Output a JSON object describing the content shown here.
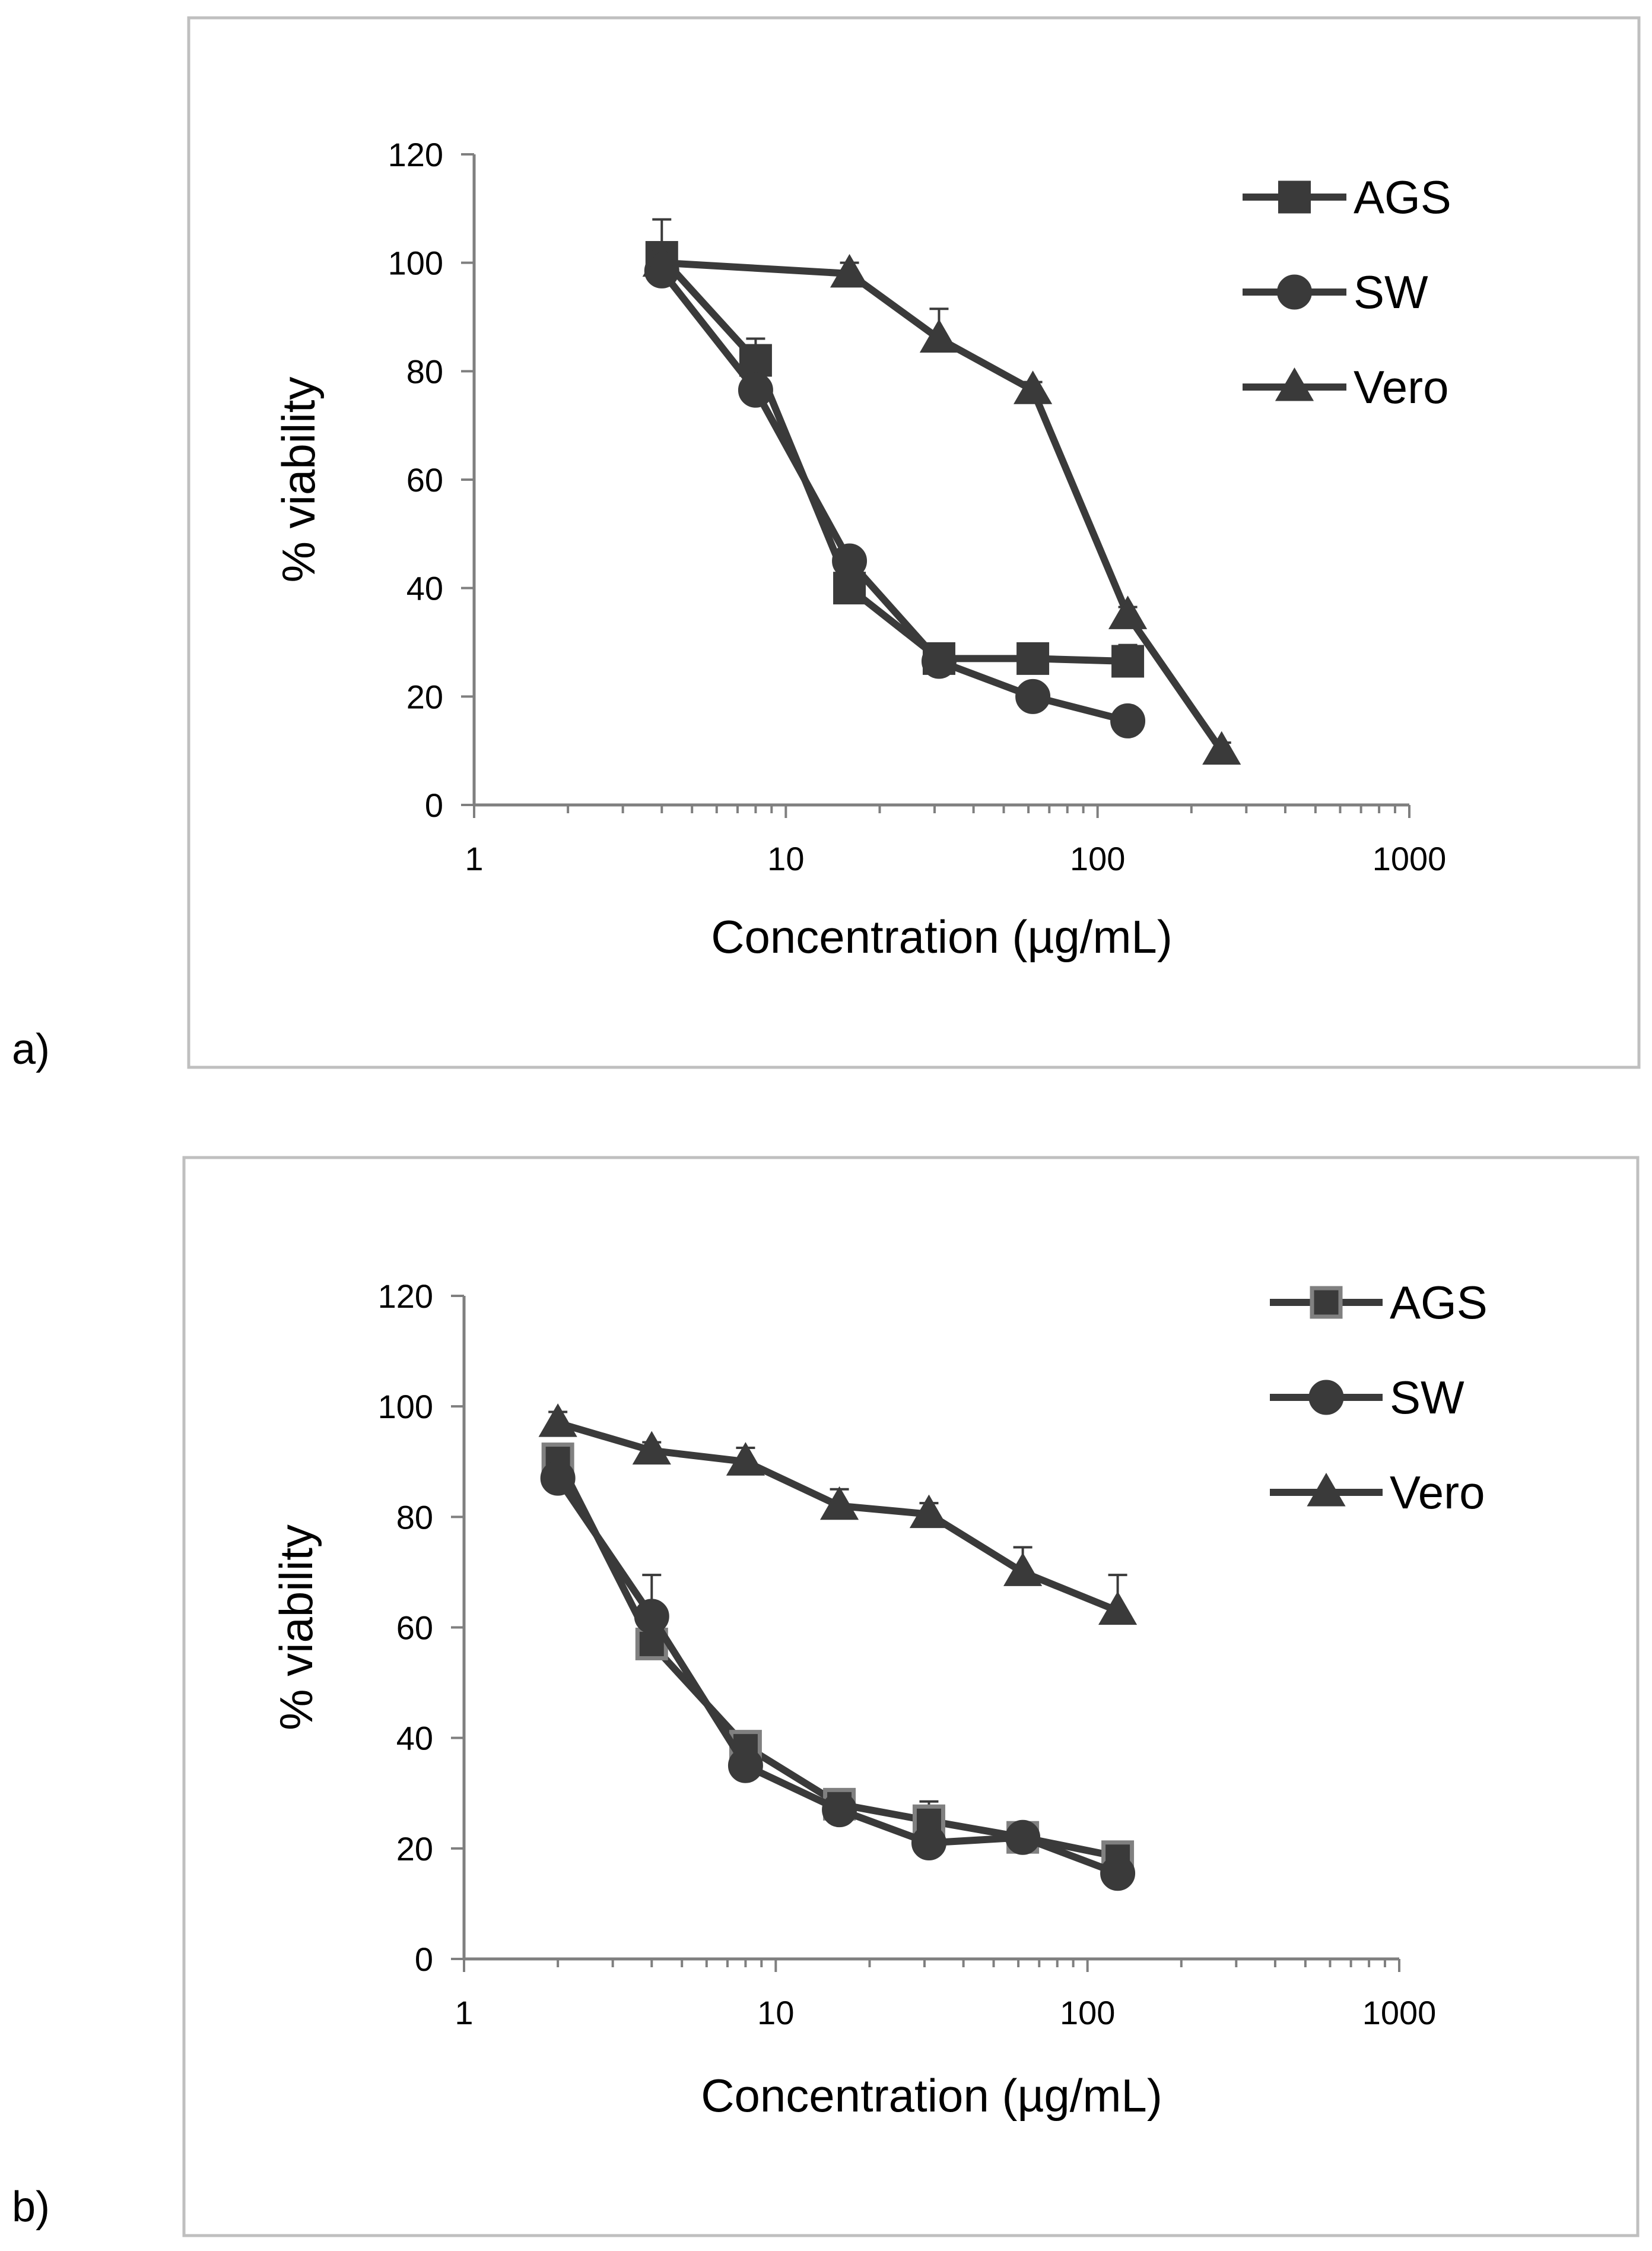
{
  "colors": {
    "series": "#3a3a3a",
    "axis": "#7f7f7f",
    "frame": "#bfbfbf",
    "ags_b_marker": "#808080"
  },
  "chart_data": [
    {
      "type": "line",
      "panel_label": "a)",
      "xlabel": "Concentration (µg/mL)",
      "ylabel": "% viability",
      "xscale": "log",
      "xlim": [
        1,
        1000
      ],
      "ylim": [
        0,
        120
      ],
      "x_tick_labels": [
        "1",
        "10",
        "100",
        "1000"
      ],
      "y_tick_labels": [
        "0",
        "20",
        "40",
        "60",
        "80",
        "100",
        "120"
      ],
      "legend_position": "top-right",
      "series": [
        {
          "name": "AGS",
          "marker": "square",
          "x": [
            4,
            8,
            16,
            31,
            62,
            125
          ],
          "y": [
            101,
            82,
            40,
            27,
            27,
            26.5
          ],
          "err": [
            7,
            4,
            2,
            1.5,
            1.5,
            3
          ]
        },
        {
          "name": "SW",
          "marker": "circle",
          "x": [
            4,
            8,
            16,
            31,
            62,
            125
          ],
          "y": [
            98.5,
            76.5,
            45,
            26.5,
            20,
            15.5
          ],
          "err": [
            4,
            5,
            2,
            1.5,
            1.5,
            1.5
          ]
        },
        {
          "name": "Vero",
          "marker": "triangle",
          "x": [
            4,
            16,
            31,
            62,
            125,
            250
          ],
          "y": [
            100,
            98,
            86,
            76.5,
            35,
            10
          ],
          "err": [
            2,
            2,
            5.5,
            1.5,
            1.5,
            1.5
          ]
        }
      ]
    },
    {
      "type": "line",
      "panel_label": "b)",
      "xlabel": "Concentration (µg/mL)",
      "ylabel": "% viability",
      "xscale": "log",
      "xlim": [
        1,
        1000
      ],
      "ylim": [
        0,
        120
      ],
      "x_tick_labels": [
        "1",
        "10",
        "100",
        "1000"
      ],
      "y_tick_labels": [
        "0",
        "20",
        "40",
        "60",
        "80",
        "100",
        "120"
      ],
      "legend_position": "top-right",
      "series": [
        {
          "name": "AGS",
          "marker": "square-grey",
          "x": [
            2,
            4,
            8,
            16,
            31,
            62,
            125
          ],
          "y": [
            90.5,
            57,
            38.5,
            28,
            25,
            22,
            18.5
          ],
          "err": [
            2,
            3,
            1.5,
            1.5,
            3.5,
            1.5,
            1.5
          ]
        },
        {
          "name": "SW",
          "marker": "circle",
          "x": [
            2,
            4,
            8,
            16,
            31,
            62,
            125
          ],
          "y": [
            87,
            62,
            35,
            27,
            21,
            22,
            15.5
          ],
          "err": [
            2,
            7.5,
            2,
            1.5,
            1.5,
            1.5,
            1.5
          ]
        },
        {
          "name": "Vero",
          "marker": "triangle",
          "x": [
            2,
            4,
            8,
            16,
            31,
            62,
            125
          ],
          "y": [
            97,
            92,
            90,
            82,
            80.5,
            70,
            63
          ],
          "err": [
            2,
            1.5,
            2.5,
            3,
            2,
            4.5,
            6.5
          ]
        }
      ]
    }
  ]
}
